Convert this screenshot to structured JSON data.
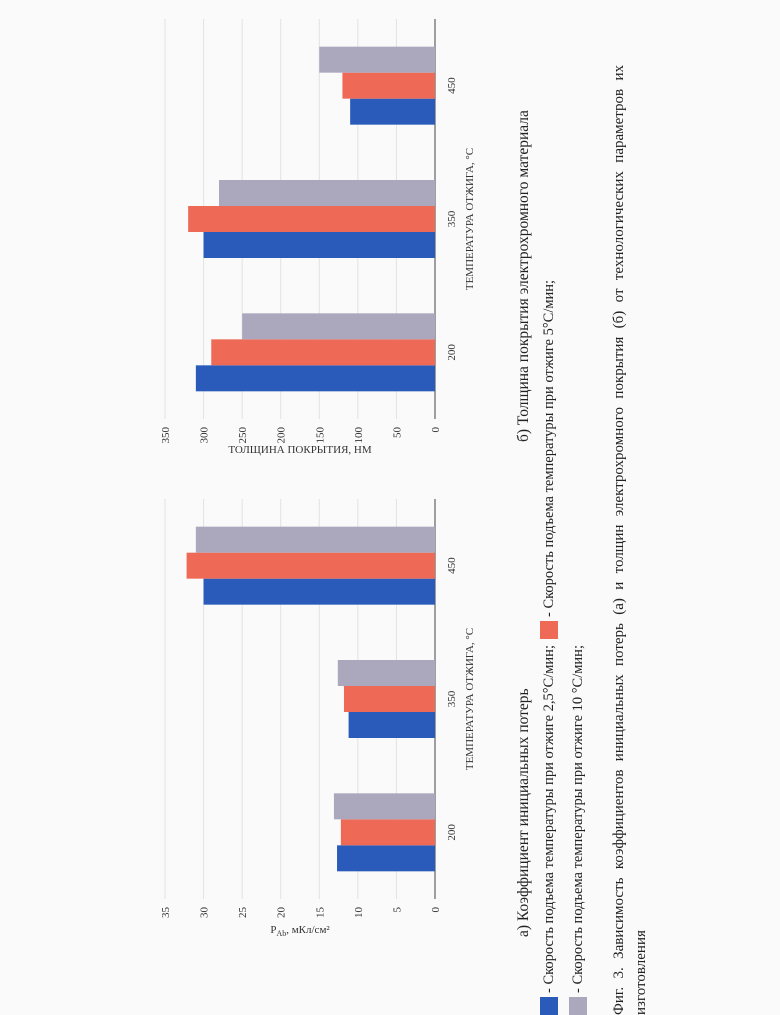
{
  "colors": {
    "s1": "#2a5bbb",
    "s2": "#ee6a57",
    "s3": "#aba8bd",
    "grid": "#e2e2e2",
    "axis": "#444444"
  },
  "chart_data": [
    {
      "type": "bar",
      "categories": [
        "200",
        "350",
        "450"
      ],
      "series": [
        {
          "name": "",
          "values": [
            12.7,
            11.2,
            30
          ]
        },
        {
          "name": "",
          "values": [
            12.2,
            11.8,
            32.2
          ]
        },
        {
          "name": "",
          "values": [
            13.1,
            12.6,
            31
          ]
        }
      ],
      "xlabel": "ТЕМПЕРАТУРА ОТЖИГА, °С",
      "ylabel": "PAb, мКл/см²",
      "ylabel_main": "P",
      "ylabel_sub": "Ab",
      "ylabel_rest": ", мКл/см²",
      "yticks": [
        "0",
        "5",
        "10",
        "15",
        "20",
        "25",
        "30",
        "35"
      ],
      "ylim": [
        0,
        35
      ],
      "grid": true
    },
    {
      "type": "bar",
      "categories": [
        "200",
        "350",
        "450"
      ],
      "series": [
        {
          "name": "",
          "values": [
            310,
            300,
            110
          ]
        },
        {
          "name": "",
          "values": [
            290,
            320,
            120
          ]
        },
        {
          "name": "",
          "values": [
            250,
            280,
            150
          ]
        }
      ],
      "xlabel": "ТЕМПЕРАТУРА ОТЖИГА, °С",
      "ylabel": "ТОЛЩИНА ПОКРЫТИЯ, НМ",
      "yticks": [
        "0",
        "50",
        "100",
        "150",
        "200",
        "250",
        "300",
        "350"
      ],
      "ylim": [
        0,
        350
      ],
      "grid": true
    }
  ],
  "captions": {
    "a": "а) Коэффициент инициальных потерь",
    "b": "б) Толщина покрытия электрохромного материала"
  },
  "legend": {
    "s1": "- Скорость подъема температуры при отжиге 2,5°С/мин;",
    "s2": "- Скорость подъема температуры при отжиге 5°С/мин;",
    "s3": "- Скорость подъема температуры при отжиге 10 °С/мин;"
  },
  "figure_caption": "Фиг. 3. Зависимость коэффициентов инициальных потерь (а) и толщин электрохромного покрытия (б) от технологических параметров их изготовления"
}
